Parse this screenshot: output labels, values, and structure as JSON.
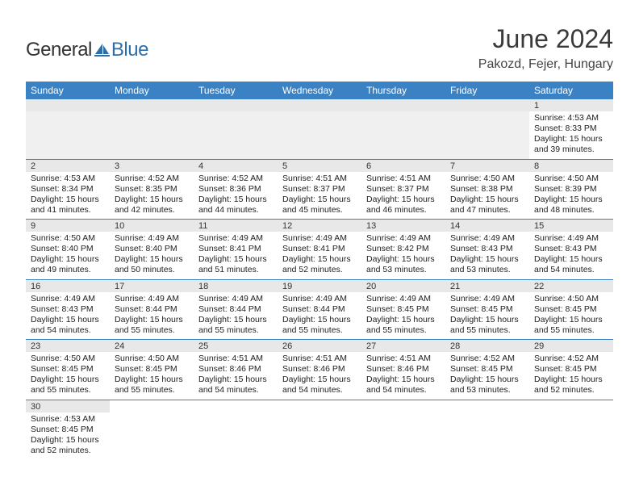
{
  "logo": {
    "text1": "General",
    "text2": "Blue"
  },
  "title": "June 2024",
  "location": "Pakozd, Fejer, Hungary",
  "colors": {
    "header_bg": "#3b82c4",
    "header_text": "#ffffff",
    "daynum_bg": "#e8e8e8",
    "border": "#3b82c4",
    "logo_blue": "#2f6fa7"
  },
  "day_headers": [
    "Sunday",
    "Monday",
    "Tuesday",
    "Wednesday",
    "Thursday",
    "Friday",
    "Saturday"
  ],
  "weeks": [
    [
      null,
      null,
      null,
      null,
      null,
      null,
      {
        "n": "1",
        "sunrise": "4:53 AM",
        "sunset": "8:33 PM",
        "daylight": "15 hours and 39 minutes."
      }
    ],
    [
      {
        "n": "2",
        "sunrise": "4:53 AM",
        "sunset": "8:34 PM",
        "daylight": "15 hours and 41 minutes."
      },
      {
        "n": "3",
        "sunrise": "4:52 AM",
        "sunset": "8:35 PM",
        "daylight": "15 hours and 42 minutes."
      },
      {
        "n": "4",
        "sunrise": "4:52 AM",
        "sunset": "8:36 PM",
        "daylight": "15 hours and 44 minutes."
      },
      {
        "n": "5",
        "sunrise": "4:51 AM",
        "sunset": "8:37 PM",
        "daylight": "15 hours and 45 minutes."
      },
      {
        "n": "6",
        "sunrise": "4:51 AM",
        "sunset": "8:37 PM",
        "daylight": "15 hours and 46 minutes."
      },
      {
        "n": "7",
        "sunrise": "4:50 AM",
        "sunset": "8:38 PM",
        "daylight": "15 hours and 47 minutes."
      },
      {
        "n": "8",
        "sunrise": "4:50 AM",
        "sunset": "8:39 PM",
        "daylight": "15 hours and 48 minutes."
      }
    ],
    [
      {
        "n": "9",
        "sunrise": "4:50 AM",
        "sunset": "8:40 PM",
        "daylight": "15 hours and 49 minutes."
      },
      {
        "n": "10",
        "sunrise": "4:49 AM",
        "sunset": "8:40 PM",
        "daylight": "15 hours and 50 minutes."
      },
      {
        "n": "11",
        "sunrise": "4:49 AM",
        "sunset": "8:41 PM",
        "daylight": "15 hours and 51 minutes."
      },
      {
        "n": "12",
        "sunrise": "4:49 AM",
        "sunset": "8:41 PM",
        "daylight": "15 hours and 52 minutes."
      },
      {
        "n": "13",
        "sunrise": "4:49 AM",
        "sunset": "8:42 PM",
        "daylight": "15 hours and 53 minutes."
      },
      {
        "n": "14",
        "sunrise": "4:49 AM",
        "sunset": "8:43 PM",
        "daylight": "15 hours and 53 minutes."
      },
      {
        "n": "15",
        "sunrise": "4:49 AM",
        "sunset": "8:43 PM",
        "daylight": "15 hours and 54 minutes."
      }
    ],
    [
      {
        "n": "16",
        "sunrise": "4:49 AM",
        "sunset": "8:43 PM",
        "daylight": "15 hours and 54 minutes."
      },
      {
        "n": "17",
        "sunrise": "4:49 AM",
        "sunset": "8:44 PM",
        "daylight": "15 hours and 55 minutes."
      },
      {
        "n": "18",
        "sunrise": "4:49 AM",
        "sunset": "8:44 PM",
        "daylight": "15 hours and 55 minutes."
      },
      {
        "n": "19",
        "sunrise": "4:49 AM",
        "sunset": "8:44 PM",
        "daylight": "15 hours and 55 minutes."
      },
      {
        "n": "20",
        "sunrise": "4:49 AM",
        "sunset": "8:45 PM",
        "daylight": "15 hours and 55 minutes."
      },
      {
        "n": "21",
        "sunrise": "4:49 AM",
        "sunset": "8:45 PM",
        "daylight": "15 hours and 55 minutes."
      },
      {
        "n": "22",
        "sunrise": "4:50 AM",
        "sunset": "8:45 PM",
        "daylight": "15 hours and 55 minutes."
      }
    ],
    [
      {
        "n": "23",
        "sunrise": "4:50 AM",
        "sunset": "8:45 PM",
        "daylight": "15 hours and 55 minutes."
      },
      {
        "n": "24",
        "sunrise": "4:50 AM",
        "sunset": "8:45 PM",
        "daylight": "15 hours and 55 minutes."
      },
      {
        "n": "25",
        "sunrise": "4:51 AM",
        "sunset": "8:46 PM",
        "daylight": "15 hours and 54 minutes."
      },
      {
        "n": "26",
        "sunrise": "4:51 AM",
        "sunset": "8:46 PM",
        "daylight": "15 hours and 54 minutes."
      },
      {
        "n": "27",
        "sunrise": "4:51 AM",
        "sunset": "8:46 PM",
        "daylight": "15 hours and 54 minutes."
      },
      {
        "n": "28",
        "sunrise": "4:52 AM",
        "sunset": "8:45 PM",
        "daylight": "15 hours and 53 minutes."
      },
      {
        "n": "29",
        "sunrise": "4:52 AM",
        "sunset": "8:45 PM",
        "daylight": "15 hours and 52 minutes."
      }
    ],
    [
      {
        "n": "30",
        "sunrise": "4:53 AM",
        "sunset": "8:45 PM",
        "daylight": "15 hours and 52 minutes."
      },
      null,
      null,
      null,
      null,
      null,
      null
    ]
  ],
  "labels": {
    "sunrise": "Sunrise: ",
    "sunset": "Sunset: ",
    "daylight": "Daylight: "
  }
}
